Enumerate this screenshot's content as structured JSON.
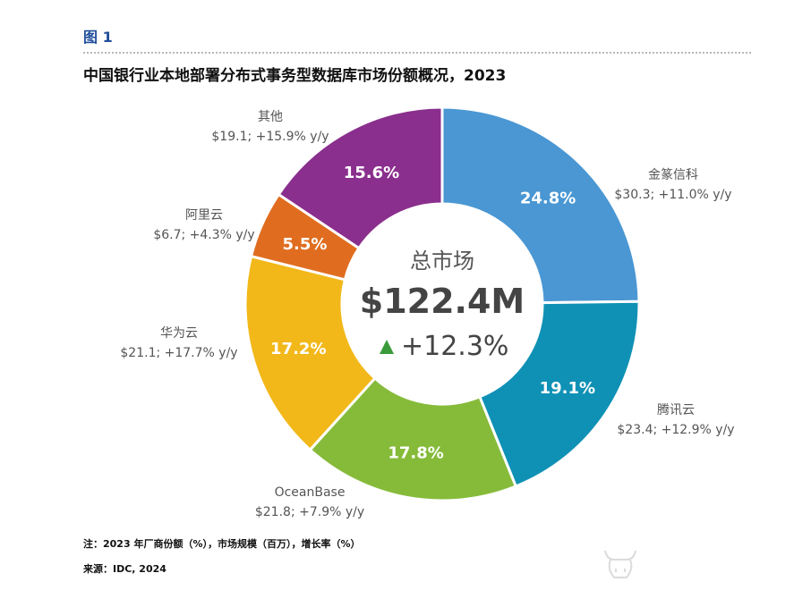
{
  "figure": {
    "label": "图 1",
    "title": "中国银行业本地部署分布式事务型数据库市场份额概况，2023",
    "note": "注：2023 年厂商份额（%），市场规模（百万），增长率（%）",
    "source": "来源：IDC, 2024"
  },
  "center": {
    "label": "总市场",
    "value": "$122.4M",
    "growth": "+12.3%",
    "growth_color": "#3a9b3a"
  },
  "chart_data": {
    "type": "pie",
    "donut": true,
    "title": "中国银行业本地部署分布式事务型数据库市场份额概况，2023",
    "series": [
      {
        "name": "金篆信科",
        "share": 24.8,
        "share_label": "24.8%",
        "detail": "$30.3; +11.0% y/y",
        "color": "#4a97d3"
      },
      {
        "name": "腾讯云",
        "share": 19.1,
        "share_label": "19.1%",
        "detail": "$23.4; +12.9% y/y",
        "color": "#0f91b5"
      },
      {
        "name": "OceanBase",
        "share": 17.8,
        "share_label": "17.8%",
        "detail": "$21.8; +7.9% y/y",
        "color": "#86bb3a"
      },
      {
        "name": "华为云",
        "share": 17.2,
        "share_label": "17.2%",
        "detail": "$21.1; +17.7% y/y",
        "color": "#f2b81a"
      },
      {
        "name": "阿里云",
        "share": 5.5,
        "share_label": "5.5%",
        "detail": "$6.7; +4.3% y/y",
        "color": "#e06d1f"
      },
      {
        "name": "其他",
        "share": 15.6,
        "share_label": "15.6%",
        "detail": "$19.1; +15.9% y/y",
        "color": "#8a2f8d"
      }
    ]
  }
}
